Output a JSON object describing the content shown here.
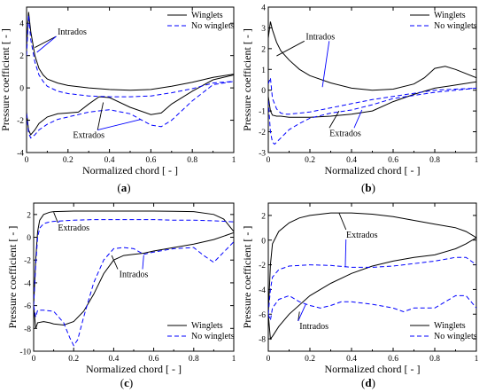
{
  "chart_data": [
    {
      "type": "line",
      "caption": "a",
      "xlabel": "Normalized chord [ - ]",
      "ylabel": "Pressure coefficient [ - ]",
      "xlim": [
        0,
        1
      ],
      "ylim": [
        -4,
        5
      ],
      "xticks": [
        "0",
        "0.2",
        "0.4",
        "0.6",
        "0.8",
        "1"
      ],
      "yticks": [
        "-4",
        "-2",
        "0",
        "2",
        "4"
      ],
      "legend": {
        "position": "top-right",
        "entries": [
          "Winglets",
          "No winglets"
        ]
      },
      "annotations": [
        {
          "text": "Intrados",
          "anchor": [
            0.22,
            3.3
          ],
          "targets": [
            [
              0.04,
              2.5
            ],
            [
              0.05,
              2.2
            ]
          ]
        },
        {
          "text": "Extrados",
          "anchor": [
            0.3,
            -3.1
          ],
          "targets": [
            [
              0.37,
              -0.9
            ],
            [
              0.55,
              -1.95
            ]
          ]
        }
      ],
      "series": [
        {
          "name": "Winglets",
          "style": "solid",
          "color": "#000000",
          "x": [
            0,
            0.01,
            0.02,
            0.04,
            0.06,
            0.08,
            0.1,
            0.15,
            0.2,
            0.3,
            0.4,
            0.5,
            0.6,
            0.7,
            0.8,
            0.9,
            1.0
          ],
          "y": [
            2.5,
            4.7,
            3.5,
            2.0,
            1.2,
            0.8,
            0.55,
            0.3,
            0.15,
            0.0,
            -0.1,
            -0.15,
            -0.1,
            0.1,
            0.35,
            0.65,
            0.85
          ]
        },
        {
          "name": "Winglets",
          "style": "solid",
          "color": "#000000",
          "x": [
            0,
            0.01,
            0.02,
            0.04,
            0.06,
            0.1,
            0.15,
            0.2,
            0.25,
            0.3,
            0.35,
            0.4,
            0.5,
            0.6,
            0.65,
            0.7,
            0.8,
            0.9,
            1.0
          ],
          "y": [
            -1.5,
            -2.6,
            -2.9,
            -2.6,
            -2.2,
            -1.8,
            -1.6,
            -1.55,
            -1.5,
            -1.0,
            -0.55,
            -0.6,
            -1.2,
            -1.65,
            -1.55,
            -1.0,
            -0.2,
            0.5,
            0.8
          ]
        },
        {
          "name": "No winglets",
          "style": "dashed",
          "color": "#0000ff",
          "x": [
            0,
            0.01,
            0.02,
            0.04,
            0.06,
            0.08,
            0.1,
            0.15,
            0.2,
            0.3,
            0.4,
            0.5,
            0.6,
            0.7,
            0.8,
            0.9,
            1.0
          ],
          "y": [
            2.0,
            4.5,
            3.0,
            1.6,
            0.8,
            0.4,
            0.1,
            -0.2,
            -0.35,
            -0.5,
            -0.55,
            -0.55,
            -0.5,
            -0.3,
            -0.05,
            0.3,
            0.4
          ]
        },
        {
          "name": "No winglets",
          "style": "dashed",
          "color": "#0000ff",
          "x": [
            0,
            0.01,
            0.02,
            0.04,
            0.06,
            0.1,
            0.15,
            0.2,
            0.3,
            0.4,
            0.5,
            0.6,
            0.65,
            0.7,
            0.8,
            0.9,
            1.0
          ],
          "y": [
            -1.6,
            -2.8,
            -3.1,
            -2.9,
            -2.6,
            -2.25,
            -1.95,
            -1.8,
            -1.5,
            -1.35,
            -1.6,
            -2.3,
            -2.4,
            -2.0,
            -0.8,
            0.2,
            0.4
          ]
        }
      ]
    },
    {
      "type": "line",
      "caption": "b",
      "xlabel": "Normalized chord [ - ]",
      "ylabel": "Pressure coefficient [ - ]",
      "xlim": [
        0,
        1
      ],
      "ylim": [
        -3,
        4
      ],
      "xticks": [
        "0",
        "0.2",
        "0.4",
        "0.6",
        "0.8",
        "1"
      ],
      "yticks": [
        "-3",
        "-2",
        "-1",
        "0",
        "1",
        "2",
        "3",
        "4"
      ],
      "legend": {
        "position": "top-right",
        "entries": [
          "Winglets",
          "No winglets"
        ]
      },
      "annotations": [
        {
          "text": "Intrados",
          "anchor": [
            0.25,
            2.45
          ],
          "targets": [
            [
              0.04,
              1.65
            ],
            [
              0.26,
              0.15
            ]
          ]
        },
        {
          "text": "Extrados",
          "anchor": [
            0.37,
            -2.2
          ],
          "targets": [
            [
              0.34,
              -1.0
            ],
            [
              0.45,
              -0.95
            ]
          ]
        }
      ],
      "series": [
        {
          "name": "Winglets",
          "style": "solid",
          "color": "#000000",
          "x": [
            0,
            0.01,
            0.02,
            0.04,
            0.06,
            0.1,
            0.15,
            0.2,
            0.3,
            0.4,
            0.5,
            0.6,
            0.7,
            0.75,
            0.8,
            0.85,
            0.9,
            1.0
          ],
          "y": [
            2.5,
            3.3,
            2.9,
            2.3,
            1.9,
            1.45,
            1.0,
            0.7,
            0.35,
            0.1,
            0.0,
            0.05,
            0.3,
            0.6,
            1.05,
            1.15,
            1.0,
            0.6
          ]
        },
        {
          "name": "Winglets",
          "style": "solid",
          "color": "#000000",
          "x": [
            0,
            0.01,
            0.02,
            0.04,
            0.06,
            0.1,
            0.2,
            0.3,
            0.4,
            0.5,
            0.6,
            0.7,
            0.8,
            0.9,
            1.0
          ],
          "y": [
            -0.3,
            -1.0,
            -1.2,
            -1.25,
            -1.25,
            -1.3,
            -1.3,
            -1.25,
            -1.15,
            -1.0,
            -0.55,
            -0.2,
            0.1,
            0.25,
            0.4
          ]
        },
        {
          "name": "No winglets",
          "style": "dashed",
          "color": "#0000ff",
          "x": [
            0,
            0.01,
            0.02,
            0.04,
            0.06,
            0.08,
            0.1,
            0.15,
            0.2,
            0.3,
            0.4,
            0.5,
            0.6,
            0.7,
            0.8,
            0.9,
            1.0
          ],
          "y": [
            0.3,
            0.6,
            -0.4,
            -0.9,
            -1.1,
            -1.15,
            -1.15,
            -1.1,
            -1.05,
            -0.85,
            -0.65,
            -0.45,
            -0.3,
            -0.15,
            0.0,
            0.05,
            0.1
          ]
        },
        {
          "name": "No winglets",
          "style": "dashed",
          "color": "#0000ff",
          "x": [
            0,
            0.01,
            0.02,
            0.03,
            0.05,
            0.08,
            0.1,
            0.15,
            0.2,
            0.3,
            0.4,
            0.5,
            0.6,
            0.7,
            0.8,
            0.9,
            1.0
          ],
          "y": [
            -0.5,
            -2.0,
            -2.5,
            -2.6,
            -2.4,
            -2.1,
            -1.9,
            -1.6,
            -1.35,
            -1.1,
            -0.95,
            -0.7,
            -0.4,
            -0.25,
            -0.1,
            0.0,
            0.1
          ]
        }
      ]
    },
    {
      "type": "line",
      "caption": "c",
      "xlabel": "Normalized chord [ - ]",
      "ylabel": "Pressure coefficient [ - ]",
      "xlim": [
        0,
        1
      ],
      "ylim": [
        -10,
        3
      ],
      "xticks": [
        "0",
        "0.2",
        "0.4",
        "0.6",
        "0.8",
        "1"
      ],
      "yticks": [
        "-10",
        "-8",
        "-6",
        "-4",
        "-2",
        "0",
        "2"
      ],
      "legend": {
        "position": "bottom-right",
        "entries": [
          "Winglets",
          "No winglets"
        ]
      },
      "annotations": [
        {
          "text": "Extrados",
          "anchor": [
            0.2,
            0.6
          ],
          "targets": [
            [
              0.1,
              2.2
            ],
            [
              0.13,
              1.4
            ]
          ]
        },
        {
          "text": "Intrados",
          "anchor": [
            0.5,
            -3.5
          ],
          "targets": [
            [
              0.39,
              -1.6
            ],
            [
              0.55,
              -1.6
            ]
          ]
        }
      ],
      "series": [
        {
          "name": "Winglets",
          "style": "solid",
          "color": "#000000",
          "x": [
            0,
            0.01,
            0.02,
            0.03,
            0.05,
            0.08,
            0.1,
            0.2,
            0.3,
            0.4,
            0.5,
            0.6,
            0.7,
            0.8,
            0.9,
            0.95,
            1.0
          ],
          "y": [
            -6.0,
            -2.0,
            0.5,
            1.5,
            2.0,
            2.2,
            2.25,
            2.3,
            2.3,
            2.3,
            2.3,
            2.3,
            2.28,
            2.25,
            2.0,
            1.6,
            0.5
          ]
        },
        {
          "name": "Winglets",
          "style": "solid",
          "color": "#000000",
          "x": [
            0,
            0.01,
            0.02,
            0.05,
            0.08,
            0.1,
            0.15,
            0.2,
            0.25,
            0.3,
            0.35,
            0.4,
            0.45,
            0.5,
            0.55,
            0.6,
            0.7,
            0.8,
            0.9,
            1.0
          ],
          "y": [
            -6.0,
            -8.0,
            -7.5,
            -7.4,
            -7.5,
            -7.6,
            -7.7,
            -7.4,
            -6.5,
            -5.0,
            -3.2,
            -2.0,
            -1.6,
            -1.5,
            -1.4,
            -1.2,
            -0.9,
            -0.6,
            -0.2,
            0.4
          ]
        },
        {
          "name": "No winglets",
          "style": "dashed",
          "color": "#0000ff",
          "x": [
            0,
            0.01,
            0.02,
            0.03,
            0.05,
            0.08,
            0.1,
            0.2,
            0.3,
            0.4,
            0.5,
            0.6,
            0.7,
            0.8,
            0.9,
            1.0
          ],
          "y": [
            -6.0,
            -2.5,
            0.0,
            0.8,
            1.2,
            1.35,
            1.4,
            1.5,
            1.55,
            1.55,
            1.55,
            1.55,
            1.5,
            1.5,
            1.45,
            1.35
          ]
        },
        {
          "name": "No winglets",
          "style": "dashed",
          "color": "#0000ff",
          "x": [
            0,
            0.01,
            0.02,
            0.05,
            0.1,
            0.15,
            0.18,
            0.2,
            0.22,
            0.25,
            0.3,
            0.35,
            0.4,
            0.45,
            0.5,
            0.55,
            0.6,
            0.7,
            0.8,
            0.85,
            0.9,
            0.95,
            1.0
          ],
          "y": [
            -6.0,
            -7.0,
            -6.4,
            -6.4,
            -6.5,
            -7.5,
            -8.8,
            -9.5,
            -9.0,
            -7.0,
            -4.0,
            -2.0,
            -1.0,
            -0.9,
            -1.0,
            -1.5,
            -1.3,
            -1.0,
            -0.9,
            -1.6,
            -2.2,
            -1.3,
            -0.4
          ]
        }
      ]
    },
    {
      "type": "line",
      "caption": "d",
      "xlabel": "Normalized chord [ - ]",
      "ylabel": "Pressure coefficient [ - ]",
      "xlim": [
        0,
        1
      ],
      "ylim": [
        -9,
        3
      ],
      "xticks": [
        "0",
        "0.2",
        "0.4",
        "0.6",
        "0.8",
        "1"
      ],
      "yticks": [
        "-8",
        "-6",
        "-4",
        "-2",
        "0",
        "2"
      ],
      "legend": {
        "position": "bottom-right",
        "entries": [
          "Winglets",
          "No winglets"
        ]
      },
      "annotations": [
        {
          "text": "Extrados",
          "anchor": [
            0.45,
            0.2
          ],
          "targets": [
            [
              0.34,
              2.2
            ],
            [
              0.37,
              -2.2
            ]
          ]
        },
        {
          "text": "Intrados",
          "anchor": [
            0.22,
            -7.2
          ],
          "targets": [
            [
              0.15,
              -5.8
            ],
            [
              0.18,
              -5.2
            ]
          ]
        }
      ],
      "series": [
        {
          "name": "Winglets",
          "style": "solid",
          "color": "#000000",
          "x": [
            0,
            0.01,
            0.02,
            0.05,
            0.1,
            0.15,
            0.2,
            0.3,
            0.4,
            0.5,
            0.6,
            0.7,
            0.8,
            0.9,
            0.95,
            1.0
          ],
          "y": [
            -6.0,
            -2.0,
            -0.3,
            0.7,
            1.4,
            1.8,
            2.0,
            2.2,
            2.2,
            2.1,
            1.9,
            1.6,
            1.3,
            1.0,
            0.7,
            0.2
          ]
        },
        {
          "name": "Winglets",
          "style": "solid",
          "color": "#000000",
          "x": [
            0,
            0.01,
            0.02,
            0.05,
            0.1,
            0.2,
            0.3,
            0.4,
            0.5,
            0.6,
            0.7,
            0.8,
            0.9,
            0.95,
            1.0
          ],
          "y": [
            -6.0,
            -8.0,
            -7.8,
            -7.0,
            -6.0,
            -4.5,
            -3.5,
            -2.7,
            -2.1,
            -1.7,
            -1.4,
            -1.2,
            -0.7,
            -0.3,
            0.2
          ]
        },
        {
          "name": "No winglets",
          "style": "dashed",
          "color": "#0000ff",
          "x": [
            0,
            0.01,
            0.02,
            0.05,
            0.1,
            0.2,
            0.3,
            0.4,
            0.5,
            0.6,
            0.7,
            0.8,
            0.9,
            0.95,
            1.0
          ],
          "y": [
            -6.0,
            -4.0,
            -3.0,
            -2.4,
            -2.1,
            -2.0,
            -2.05,
            -2.2,
            -2.2,
            -2.1,
            -1.9,
            -1.7,
            -1.4,
            -1.4,
            -2.0
          ]
        },
        {
          "name": "No winglets",
          "style": "dashed",
          "color": "#0000ff",
          "x": [
            0,
            0.01,
            0.02,
            0.05,
            0.1,
            0.15,
            0.2,
            0.25,
            0.3,
            0.35,
            0.4,
            0.5,
            0.6,
            0.65,
            0.7,
            0.8,
            0.9,
            0.95,
            1.0
          ],
          "y": [
            -6.0,
            -6.5,
            -5.5,
            -4.8,
            -4.5,
            -5.0,
            -5.3,
            -5.5,
            -5.3,
            -5.0,
            -5.0,
            -5.2,
            -5.5,
            -5.8,
            -5.5,
            -5.5,
            -4.5,
            -4.5,
            -5.5
          ]
        }
      ]
    }
  ]
}
